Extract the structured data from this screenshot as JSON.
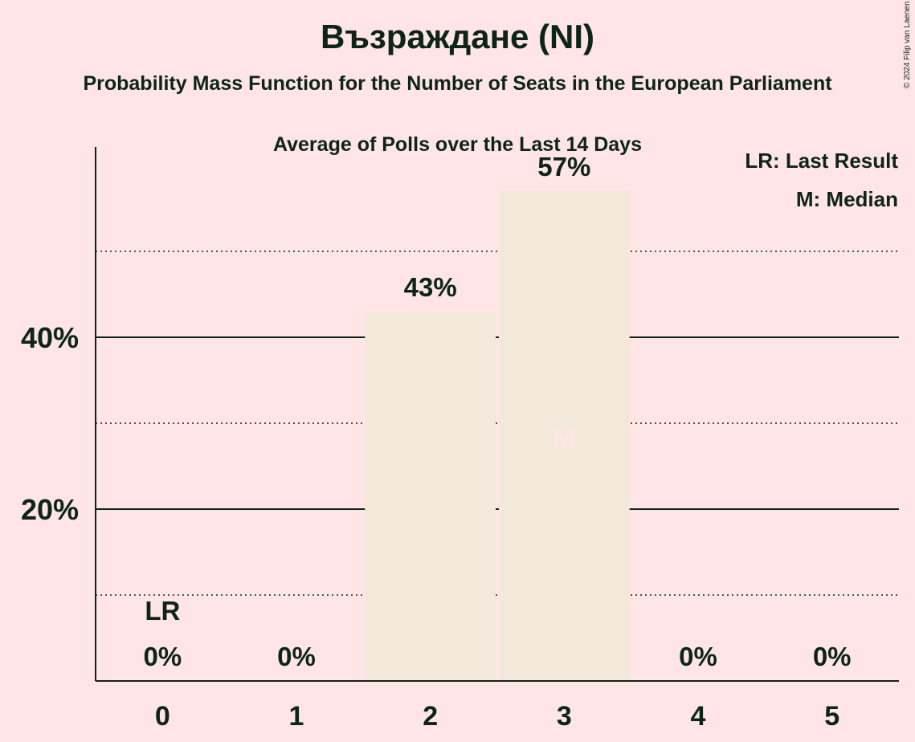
{
  "title": "Възраждане (NI)",
  "subtitle": "Probability Mass Function for the Number of Seats in the European Parliament",
  "subtitle2": "Average of Polls over the Last 14 Days",
  "copyright": "© 2024 Filip van Laenen",
  "colors": {
    "background": "#FFE5E5",
    "bar": "#F2E9DA",
    "text": "#0D2418",
    "median_marker": "#FFE5E5"
  },
  "chart_data": {
    "type": "bar",
    "categories": [
      "0",
      "1",
      "2",
      "3",
      "4",
      "5"
    ],
    "values": [
      0,
      0,
      43,
      57,
      0,
      0
    ],
    "value_labels": [
      "0%",
      "0%",
      "43%",
      "57%",
      "0%",
      "0%"
    ],
    "ylim": [
      0,
      62
    ],
    "yticks": [
      {
        "value": 20,
        "label": "20%"
      },
      {
        "value": 40,
        "label": "40%"
      }
    ],
    "minor_gridlines": [
      10,
      30,
      50
    ],
    "last_result": {
      "category": "0",
      "label": "LR"
    },
    "median": {
      "category": "3",
      "label": "M"
    },
    "legend": {
      "position": "top-right",
      "items": [
        "LR: Last Result",
        "M: Median"
      ]
    },
    "grid": true
  }
}
